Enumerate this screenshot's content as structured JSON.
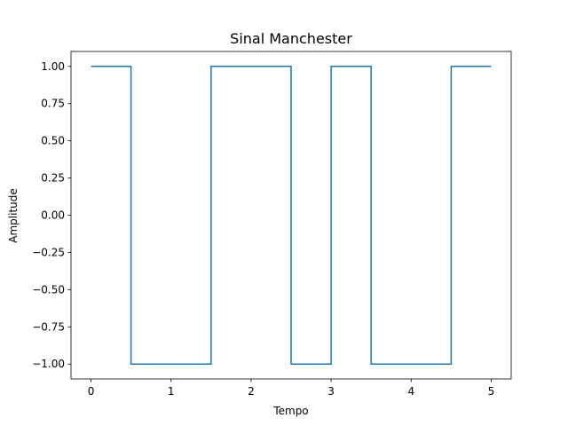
{
  "chart_data": {
    "type": "line",
    "title": "Sinal Manchester",
    "xlabel": "Tempo",
    "ylabel": "Amplitude",
    "xlim": [
      -0.25,
      5.25
    ],
    "ylim": [
      -1.1,
      1.1
    ],
    "grid": false,
    "x_ticks": [
      0,
      1,
      2,
      3,
      4,
      5
    ],
    "x_tick_labels": [
      "0",
      "1",
      "2",
      "3",
      "4",
      "5"
    ],
    "y_ticks": [
      1.0,
      0.75,
      0.5,
      0.25,
      0.0,
      -0.25,
      -0.5,
      -0.75,
      -1.0
    ],
    "y_tick_labels": [
      "1.00",
      "0.75",
      "0.50",
      "0.25",
      "0.00",
      "−0.25",
      "−0.50",
      "−0.75",
      "−1.00"
    ],
    "series": [
      {
        "color": "#1f77b4",
        "x": [
          0,
          0.5,
          0.5,
          1.5,
          1.5,
          2.5,
          2.5,
          3.0,
          3.0,
          3.5,
          3.5,
          4.5,
          4.5,
          5.0
        ],
        "y": [
          1,
          1,
          -1,
          -1,
          1,
          1,
          -1,
          -1,
          1,
          1,
          -1,
          -1,
          1,
          1
        ]
      }
    ]
  }
}
